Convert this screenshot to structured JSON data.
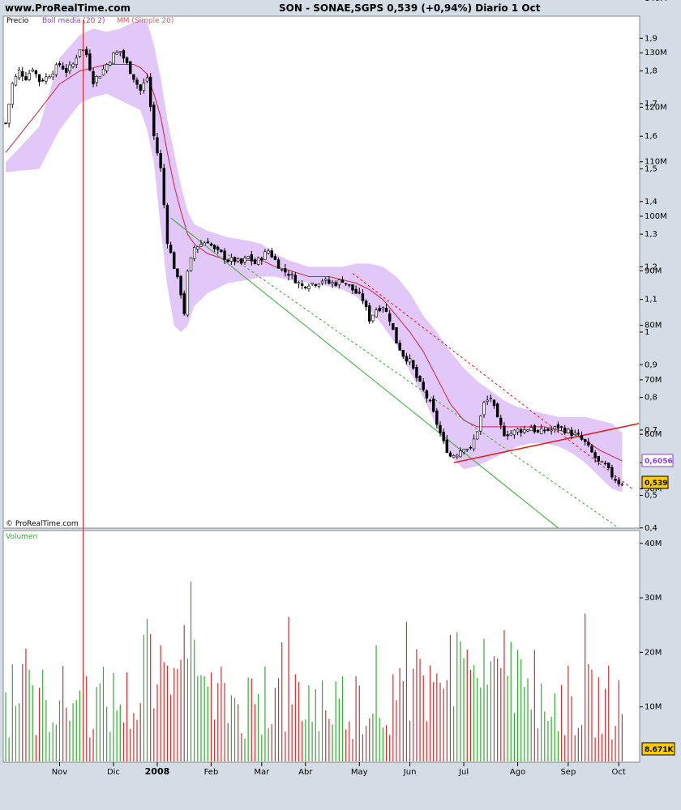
{
  "header": {
    "site": "www.ProRealTime.com",
    "title": "SON - SONAE,SGPS    0,539 (+0,94%)    Diario  1 Oct"
  },
  "price_panel": {
    "legend": {
      "precio": "Precio",
      "boll": "Boll media (20 2)",
      "mm": "MM (Simple 20)"
    },
    "watermark": "© ProRealTime.com",
    "y_ticks": [
      "1,9",
      "1,8",
      "1,7",
      "1,6",
      "1,5",
      "1,4",
      "1,3",
      "1,2",
      "1,1",
      "1",
      "0,9",
      "0,8",
      "0,7",
      "0,6",
      "0,5",
      "0,4"
    ],
    "ma_label": "0,6056",
    "last_label": "0,539"
  },
  "volume_panel": {
    "legend": "Volumen",
    "y_ticks": [
      "140M",
      "130M",
      "120M",
      "110M",
      "100M",
      "90M",
      "80M",
      "70M",
      "60M",
      "50M",
      "40M",
      "30M",
      "20M",
      "10M"
    ],
    "last_label": "8.671K"
  },
  "x_ticks": [
    "Nov",
    "Dic",
    "2008",
    "Feb",
    "Mar",
    "Abr",
    "May",
    "Jun",
    "Jul",
    "Ago",
    "Sep",
    "Oct"
  ],
  "colors": {
    "band": "#e2c8f8",
    "ma": "#cc2244",
    "up": "#33aa33",
    "down": "#cc3333",
    "trend_green": "#33aa33",
    "trend_red": "#ee1111"
  },
  "chart_data": {
    "type": "candlestick",
    "ylim": [
      0.4,
      1.95
    ],
    "months": [
      "Nov",
      "Dic",
      "2008",
      "Feb",
      "Mar",
      "Abr",
      "May",
      "Jun",
      "Jul",
      "Ago",
      "Sep",
      "Oct"
    ],
    "close_path": [
      [
        0,
        1.64
      ],
      [
        2,
        1.76
      ],
      [
        4,
        1.8
      ],
      [
        6,
        1.78
      ],
      [
        8,
        1.81
      ],
      [
        10,
        1.77
      ],
      [
        12,
        1.78
      ],
      [
        14,
        1.8
      ],
      [
        16,
        1.82
      ],
      [
        18,
        1.8
      ],
      [
        20,
        1.82
      ],
      [
        22,
        1.87
      ],
      [
        24,
        1.85
      ],
      [
        26,
        1.77
      ],
      [
        28,
        1.79
      ],
      [
        30,
        1.82
      ],
      [
        32,
        1.85
      ],
      [
        34,
        1.86
      ],
      [
        36,
        1.82
      ],
      [
        38,
        1.78
      ],
      [
        40,
        1.74
      ],
      [
        42,
        1.78
      ],
      [
        44,
        1.6
      ],
      [
        46,
        1.5
      ],
      [
        48,
        1.28
      ],
      [
        50,
        1.2
      ],
      [
        52,
        1.12
      ],
      [
        53,
        1.06
      ],
      [
        54,
        1.18
      ],
      [
        56,
        1.26
      ],
      [
        58,
        1.27
      ],
      [
        60,
        1.28
      ],
      [
        62,
        1.25
      ],
      [
        64,
        1.24
      ],
      [
        66,
        1.22
      ],
      [
        68,
        1.22
      ],
      [
        70,
        1.21
      ],
      [
        72,
        1.23
      ],
      [
        74,
        1.21
      ],
      [
        76,
        1.23
      ],
      [
        78,
        1.25
      ],
      [
        80,
        1.22
      ],
      [
        82,
        1.19
      ],
      [
        84,
        1.18
      ],
      [
        86,
        1.16
      ],
      [
        88,
        1.14
      ],
      [
        90,
        1.15
      ],
      [
        92,
        1.15
      ],
      [
        94,
        1.16
      ],
      [
        96,
        1.15
      ],
      [
        98,
        1.15
      ],
      [
        100,
        1.16
      ],
      [
        102,
        1.14
      ],
      [
        104,
        1.12
      ],
      [
        106,
        1.1
      ],
      [
        108,
        1.04
      ],
      [
        110,
        1.07
      ],
      [
        112,
        1.08
      ],
      [
        114,
        1.04
      ],
      [
        116,
        0.97
      ],
      [
        118,
        0.93
      ],
      [
        120,
        0.91
      ],
      [
        122,
        0.86
      ],
      [
        124,
        0.82
      ],
      [
        126,
        0.78
      ],
      [
        128,
        0.72
      ],
      [
        130,
        0.66
      ],
      [
        132,
        0.62
      ],
      [
        134,
        0.63
      ],
      [
        136,
        0.65
      ],
      [
        138,
        0.64
      ],
      [
        140,
        0.7
      ],
      [
        142,
        0.78
      ],
      [
        144,
        0.8
      ],
      [
        146,
        0.73
      ],
      [
        148,
        0.69
      ],
      [
        150,
        0.69
      ],
      [
        152,
        0.7
      ],
      [
        154,
        0.7
      ],
      [
        156,
        0.71
      ],
      [
        158,
        0.69
      ],
      [
        160,
        0.7
      ],
      [
        162,
        0.7
      ],
      [
        164,
        0.71
      ],
      [
        166,
        0.7
      ],
      [
        168,
        0.69
      ],
      [
        170,
        0.68
      ],
      [
        172,
        0.66
      ],
      [
        174,
        0.63
      ],
      [
        176,
        0.6
      ],
      [
        178,
        0.59
      ],
      [
        180,
        0.56
      ],
      [
        182,
        0.54
      ],
      [
        183,
        0.539
      ]
    ],
    "upper_band": [
      [
        0,
        1.52
      ],
      [
        10,
        1.63
      ],
      [
        16,
        1.84
      ],
      [
        22,
        1.91
      ],
      [
        26,
        1.93
      ],
      [
        30,
        1.92
      ],
      [
        34,
        1.93
      ],
      [
        38,
        1.95
      ],
      [
        40,
        1.96
      ],
      [
        42,
        1.95
      ],
      [
        44,
        1.88
      ],
      [
        46,
        1.78
      ],
      [
        48,
        1.65
      ],
      [
        50,
        1.55
      ],
      [
        52,
        1.45
      ],
      [
        54,
        1.37
      ],
      [
        56,
        1.33
      ],
      [
        60,
        1.31
      ],
      [
        66,
        1.29
      ],
      [
        72,
        1.28
      ],
      [
        76,
        1.27
      ],
      [
        80,
        1.24
      ],
      [
        84,
        1.22
      ],
      [
        90,
        1.2
      ],
      [
        96,
        1.2
      ],
      [
        100,
        1.2
      ],
      [
        104,
        1.21
      ],
      [
        108,
        1.21
      ],
      [
        112,
        1.2
      ],
      [
        116,
        1.17
      ],
      [
        120,
        1.12
      ],
      [
        124,
        1.05
      ],
      [
        128,
        1.0
      ],
      [
        132,
        0.94
      ],
      [
        136,
        0.89
      ],
      [
        140,
        0.85
      ],
      [
        144,
        0.82
      ],
      [
        148,
        0.79
      ],
      [
        152,
        0.77
      ],
      [
        156,
        0.76
      ],
      [
        160,
        0.75
      ],
      [
        164,
        0.74
      ],
      [
        168,
        0.74
      ],
      [
        172,
        0.74
      ],
      [
        176,
        0.73
      ],
      [
        180,
        0.72
      ],
      [
        183,
        0.69
      ]
    ],
    "lower_band": [
      [
        0,
        1.49
      ],
      [
        10,
        1.5
      ],
      [
        16,
        1.62
      ],
      [
        22,
        1.7
      ],
      [
        26,
        1.72
      ],
      [
        30,
        1.73
      ],
      [
        34,
        1.71
      ],
      [
        38,
        1.69
      ],
      [
        40,
        1.68
      ],
      [
        42,
        1.62
      ],
      [
        44,
        1.52
      ],
      [
        46,
        1.32
      ],
      [
        48,
        1.14
      ],
      [
        50,
        1.02
      ],
      [
        52,
        1.0
      ],
      [
        54,
        1.02
      ],
      [
        56,
        1.08
      ],
      [
        60,
        1.12
      ],
      [
        66,
        1.15
      ],
      [
        72,
        1.16
      ],
      [
        76,
        1.17
      ],
      [
        80,
        1.17
      ],
      [
        84,
        1.16
      ],
      [
        90,
        1.15
      ],
      [
        96,
        1.14
      ],
      [
        100,
        1.13
      ],
      [
        104,
        1.11
      ],
      [
        108,
        1.07
      ],
      [
        112,
        1.02
      ],
      [
        116,
        0.96
      ],
      [
        120,
        0.88
      ],
      [
        124,
        0.8
      ],
      [
        128,
        0.71
      ],
      [
        132,
        0.62
      ],
      [
        136,
        0.58
      ],
      [
        140,
        0.59
      ],
      [
        144,
        0.61
      ],
      [
        148,
        0.63
      ],
      [
        152,
        0.65
      ],
      [
        156,
        0.66
      ],
      [
        160,
        0.66
      ],
      [
        164,
        0.65
      ],
      [
        168,
        0.63
      ],
      [
        172,
        0.6
      ],
      [
        176,
        0.56
      ],
      [
        180,
        0.52
      ],
      [
        183,
        0.51
      ]
    ],
    "moving_average": [
      [
        0,
        1.55
      ],
      [
        10,
        1.68
      ],
      [
        16,
        1.76
      ],
      [
        22,
        1.8
      ],
      [
        26,
        1.81
      ],
      [
        30,
        1.82
      ],
      [
        34,
        1.82
      ],
      [
        38,
        1.82
      ],
      [
        40,
        1.81
      ],
      [
        42,
        1.79
      ],
      [
        44,
        1.73
      ],
      [
        46,
        1.66
      ],
      [
        48,
        1.55
      ],
      [
        50,
        1.45
      ],
      [
        52,
        1.37
      ],
      [
        54,
        1.3
      ],
      [
        56,
        1.27
      ],
      [
        60,
        1.24
      ],
      [
        66,
        1.22
      ],
      [
        72,
        1.22
      ],
      [
        76,
        1.22
      ],
      [
        80,
        1.2
      ],
      [
        84,
        1.19
      ],
      [
        90,
        1.17
      ],
      [
        96,
        1.17
      ],
      [
        100,
        1.16
      ],
      [
        104,
        1.15
      ],
      [
        108,
        1.13
      ],
      [
        112,
        1.1
      ],
      [
        116,
        1.05
      ],
      [
        120,
        1.0
      ],
      [
        124,
        0.94
      ],
      [
        128,
        0.86
      ],
      [
        132,
        0.78
      ],
      [
        136,
        0.73
      ],
      [
        140,
        0.71
      ],
      [
        144,
        0.71
      ],
      [
        148,
        0.71
      ],
      [
        152,
        0.71
      ],
      [
        156,
        0.71
      ],
      [
        160,
        0.71
      ],
      [
        164,
        0.7
      ],
      [
        168,
        0.69
      ],
      [
        172,
        0.67
      ],
      [
        176,
        0.64
      ],
      [
        180,
        0.62
      ],
      [
        183,
        0.6056
      ]
    ],
    "trend_lines": [
      {
        "color": "green",
        "style": "solid",
        "from": [
          49,
          1.35
        ],
        "to": [
          164,
          0.4
        ]
      },
      {
        "color": "green",
        "style": "dashed",
        "from": [
          60,
          1.28
        ],
        "to": [
          182,
          0.4
        ]
      },
      {
        "color": "red",
        "style": "dashed",
        "from": [
          103,
          1.18
        ],
        "to": [
          186,
          0.52
        ]
      },
      {
        "color": "red",
        "style": "solid",
        "from": [
          133,
          0.6
        ],
        "to": [
          188,
          0.72
        ]
      }
    ],
    "volume_ylim": [
      0,
      145
    ],
    "volume_unit": "M",
    "volume_spike": {
      "index": 23,
      "value": 136
    },
    "last_close": 0.539,
    "last_ma": 0.6056,
    "last_volume": "8.671K"
  }
}
